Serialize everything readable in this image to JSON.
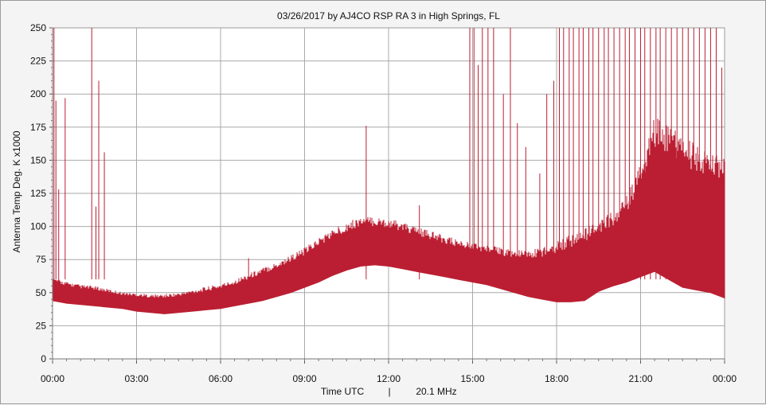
{
  "chart_data": {
    "type": "area",
    "title": "03/26/2017  by  AJ4CO RSP RA 3  in  High Springs, FL",
    "ylabel": "Antenna Temp Deg. K x1000",
    "xlabel_left": "Time UTC",
    "xlabel_sep": "|",
    "xlabel_right": "20.1 MHz",
    "x_unit": "hours UTC",
    "xlim": [
      0,
      24
    ],
    "ylim": [
      0,
      250
    ],
    "x_ticks": [
      "00:00",
      "03:00",
      "06:00",
      "09:00",
      "12:00",
      "15:00",
      "18:00",
      "21:00",
      "00:00"
    ],
    "y_ticks": [
      "0",
      "25",
      "50",
      "75",
      "100",
      "125",
      "150",
      "175",
      "200",
      "225",
      "250"
    ],
    "grid": true,
    "color": "#bb1e32",
    "series": [
      {
        "x": [
          0,
          0.5,
          1,
          1.5,
          2,
          2.5,
          3,
          3.5,
          4,
          4.5,
          5,
          5.5,
          6,
          6.5,
          7,
          7.5,
          8,
          8.5,
          9,
          9.5,
          10,
          10.5,
          11,
          11.5,
          12,
          12.5,
          13,
          13.5,
          14,
          14.5,
          15,
          15.5,
          16,
          16.5,
          17,
          17.5,
          18,
          18.5,
          19,
          19.5,
          20,
          20.5,
          21,
          21.5,
          22,
          22.5,
          23,
          23.5,
          24
        ],
        "low": [
          44,
          42,
          41,
          40,
          39,
          38,
          36,
          35,
          34,
          35,
          36,
          37,
          38,
          40,
          42,
          44,
          47,
          50,
          54,
          58,
          63,
          67,
          70,
          71,
          70,
          68,
          66,
          64,
          62,
          60,
          58,
          56,
          53,
          50,
          47,
          45,
          43,
          43,
          44,
          51,
          55,
          58,
          62,
          66,
          60,
          54,
          52,
          50,
          46
        ],
        "high": [
          58,
          55,
          53,
          52,
          50,
          48,
          47,
          46,
          46,
          47,
          49,
          51,
          53,
          56,
          60,
          64,
          68,
          73,
          78,
          85,
          91,
          96,
          100,
          100,
          99,
          96,
          93,
          90,
          87,
          84,
          82,
          80,
          78,
          76,
          75,
          77,
          80,
          84,
          88,
          94,
          100,
          110,
          130,
          160,
          155,
          145,
          140,
          135,
          130
        ]
      }
    ],
    "spikes": [
      {
        "x": 0.05,
        "y": 250
      },
      {
        "x": 0.12,
        "y": 195
      },
      {
        "x": 0.22,
        "y": 128
      },
      {
        "x": 0.45,
        "y": 197
      },
      {
        "x": 1.4,
        "y": 250
      },
      {
        "x": 1.65,
        "y": 210
      },
      {
        "x": 1.85,
        "y": 156
      },
      {
        "x": 1.55,
        "y": 115
      },
      {
        "x": 7.0,
        "y": 76
      },
      {
        "x": 11.2,
        "y": 176
      },
      {
        "x": 13.1,
        "y": 116
      },
      {
        "x": 14.9,
        "y": 250
      },
      {
        "x": 15.05,
        "y": 250
      },
      {
        "x": 15.2,
        "y": 222
      },
      {
        "x": 15.35,
        "y": 250
      },
      {
        "x": 15.55,
        "y": 250
      },
      {
        "x": 15.75,
        "y": 250
      },
      {
        "x": 16.1,
        "y": 200
      },
      {
        "x": 16.35,
        "y": 250
      },
      {
        "x": 16.6,
        "y": 178
      },
      {
        "x": 16.9,
        "y": 160
      },
      {
        "x": 17.4,
        "y": 140
      },
      {
        "x": 17.65,
        "y": 200
      },
      {
        "x": 17.9,
        "y": 210
      },
      {
        "x": 18.1,
        "y": 250
      },
      {
        "x": 18.25,
        "y": 250
      },
      {
        "x": 18.45,
        "y": 250
      },
      {
        "x": 18.6,
        "y": 250
      },
      {
        "x": 18.8,
        "y": 250
      },
      {
        "x": 18.95,
        "y": 250
      },
      {
        "x": 19.15,
        "y": 250
      },
      {
        "x": 19.3,
        "y": 250
      },
      {
        "x": 19.5,
        "y": 250
      },
      {
        "x": 19.7,
        "y": 250
      },
      {
        "x": 19.85,
        "y": 250
      },
      {
        "x": 20.05,
        "y": 250
      },
      {
        "x": 20.25,
        "y": 250
      },
      {
        "x": 20.45,
        "y": 250
      },
      {
        "x": 20.6,
        "y": 250
      },
      {
        "x": 20.8,
        "y": 250
      },
      {
        "x": 21.0,
        "y": 250
      },
      {
        "x": 21.15,
        "y": 250
      },
      {
        "x": 21.35,
        "y": 250
      },
      {
        "x": 21.55,
        "y": 250
      },
      {
        "x": 21.7,
        "y": 250
      },
      {
        "x": 21.9,
        "y": 250
      },
      {
        "x": 22.1,
        "y": 250
      },
      {
        "x": 22.3,
        "y": 250
      },
      {
        "x": 22.5,
        "y": 250
      },
      {
        "x": 22.7,
        "y": 250
      },
      {
        "x": 22.9,
        "y": 250
      },
      {
        "x": 23.1,
        "y": 250
      },
      {
        "x": 23.3,
        "y": 250
      },
      {
        "x": 23.5,
        "y": 250
      },
      {
        "x": 23.7,
        "y": 250
      },
      {
        "x": 23.9,
        "y": 220
      }
    ]
  }
}
